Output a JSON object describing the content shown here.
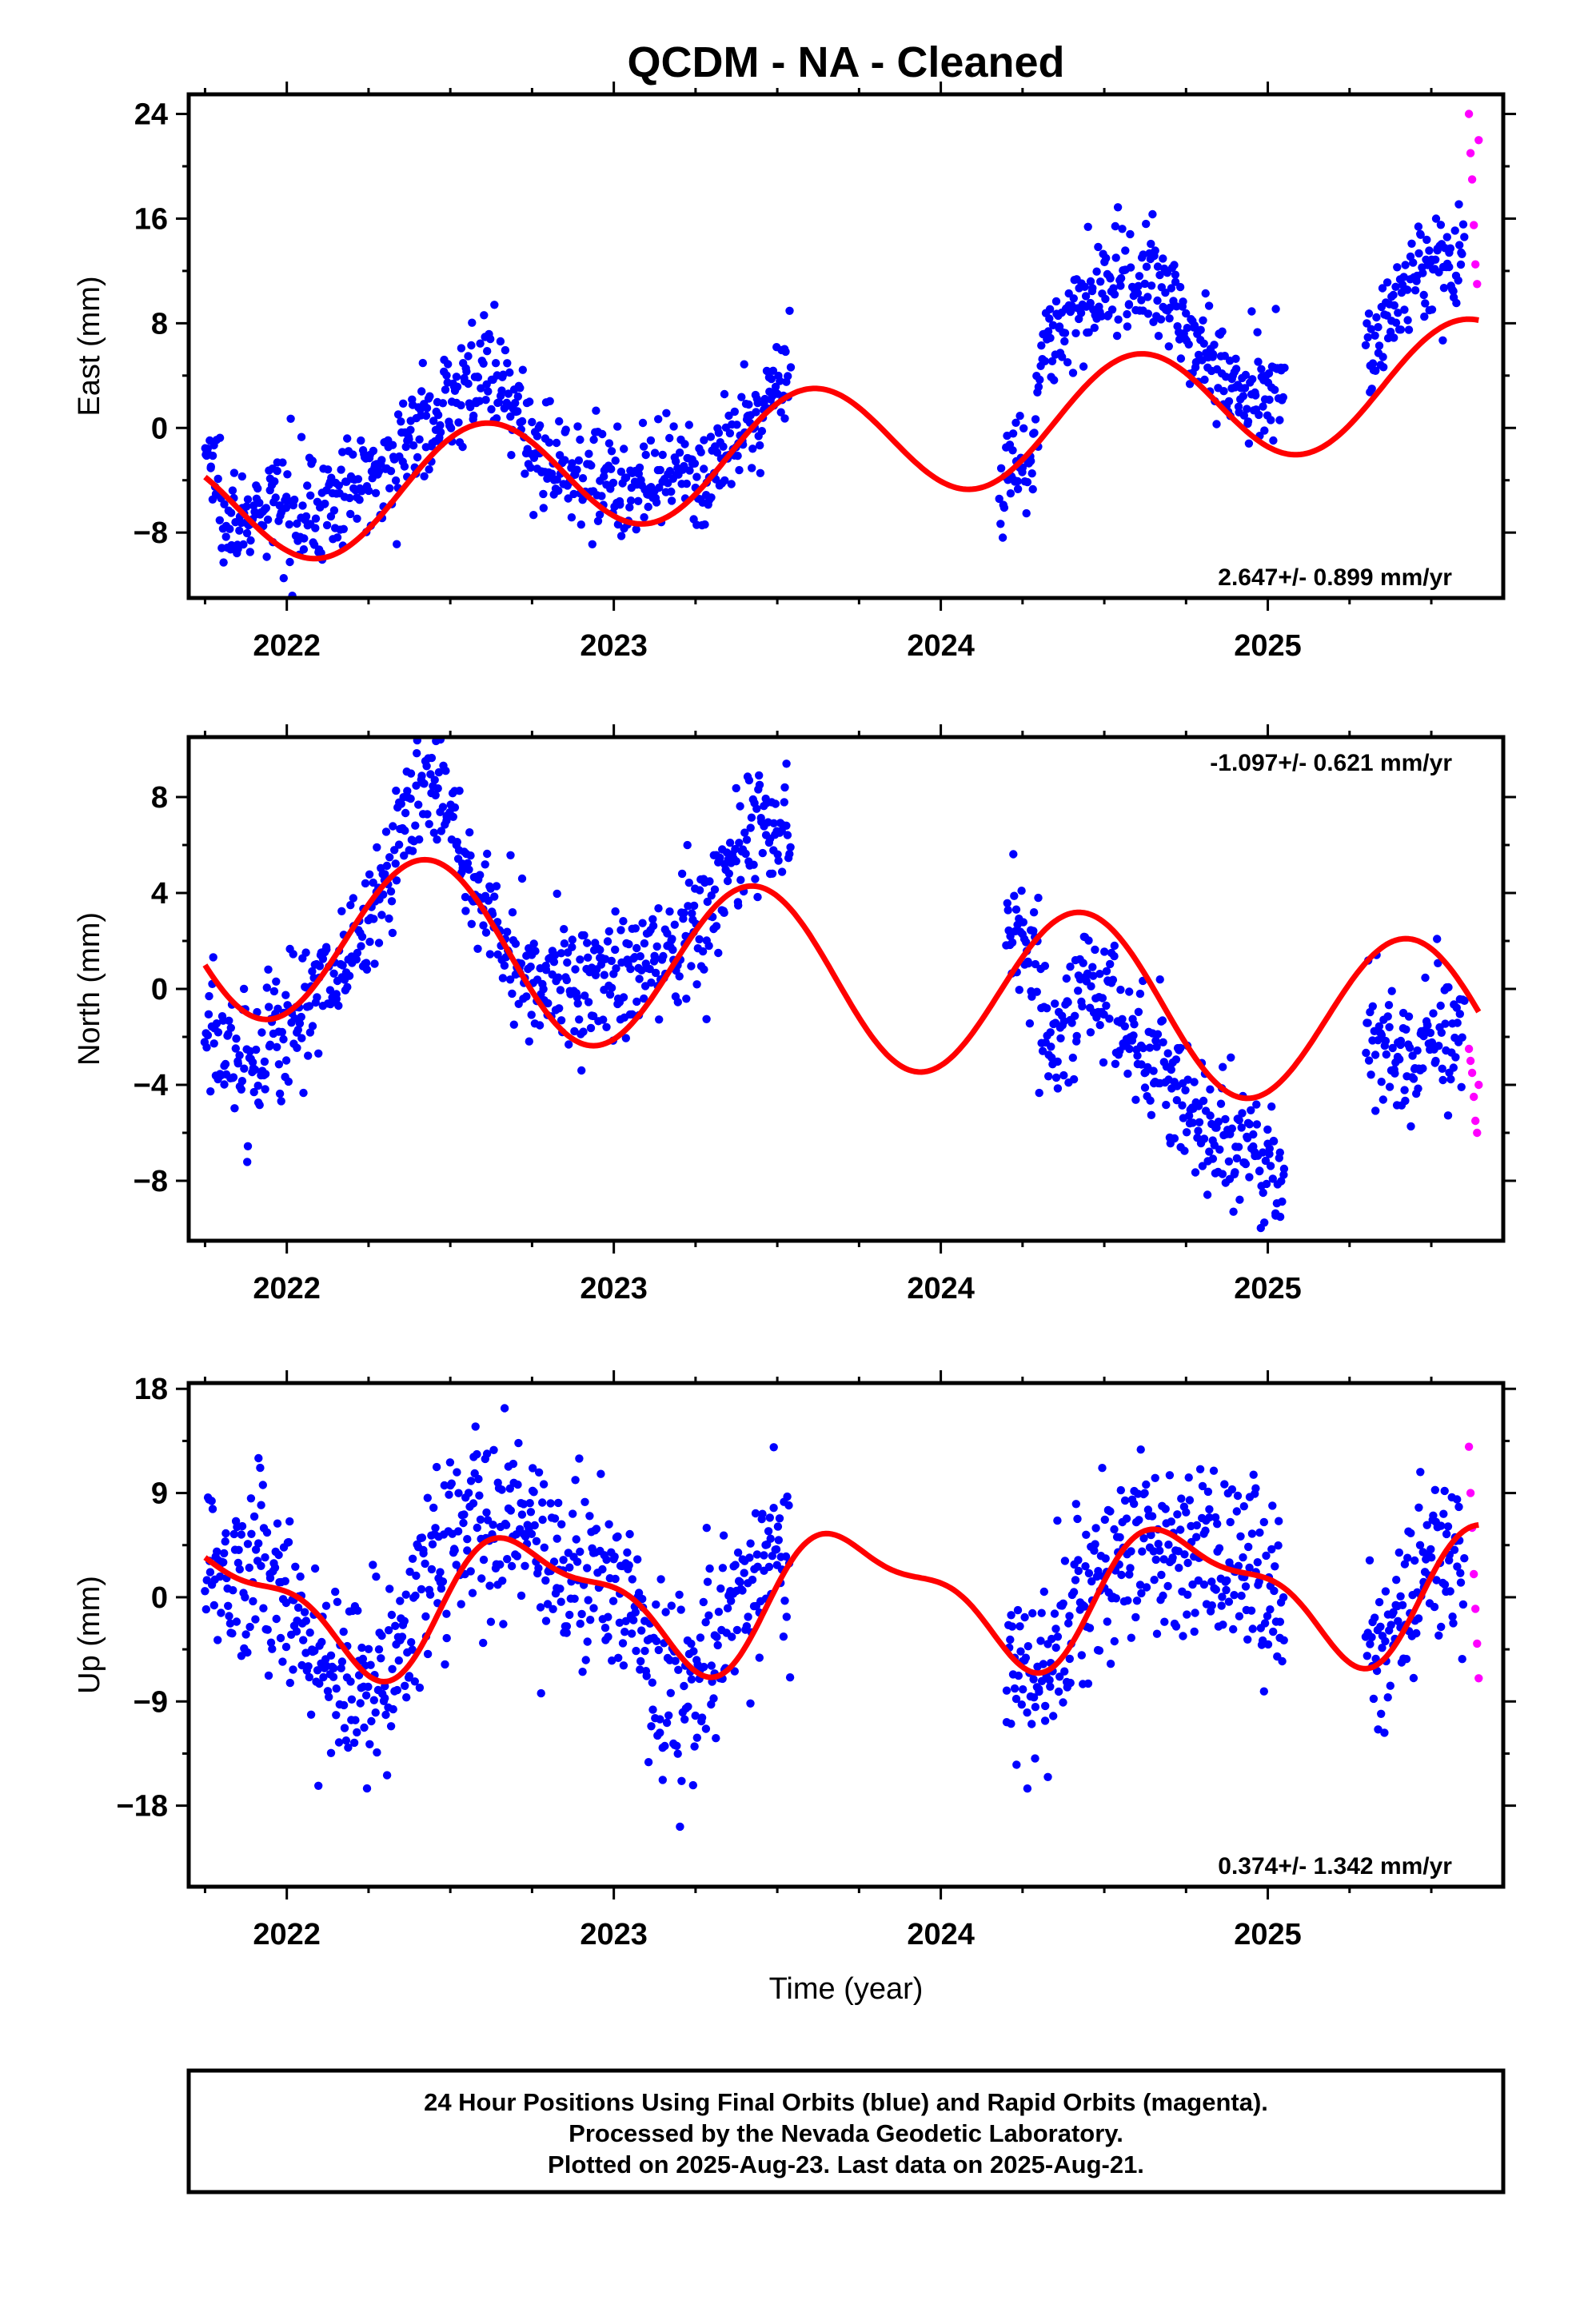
{
  "title": "QCDM  - NA - Cleaned",
  "colors": {
    "final_orbits": "#0000ff",
    "rapid_orbits": "#ff00ff",
    "model": "#ff0000"
  },
  "footer": {
    "lines": [
      "24 Hour Positions Using Final Orbits (blue) and Rapid Orbits (magenta).",
      "Processed by the Nevada Geodetic Laboratory.",
      "Plotted on 2025-Aug-23. Last data on 2025-Aug-21."
    ]
  },
  "chart_data": [
    {
      "type": "scatter",
      "id": "east",
      "ylabel": "East (mm)",
      "xlabel": "",
      "xlim": [
        2021.7,
        2025.72
      ],
      "ylim": [
        -13,
        25.5
      ],
      "xticks": [
        2022,
        2023,
        2024,
        2025
      ],
      "xtick_labels": [
        "2022",
        "2023",
        "2024",
        "2025"
      ],
      "yticks": [
        24,
        16,
        8,
        0,
        -8
      ],
      "ytick_labels": [
        "24",
        "16",
        "8",
        "0",
        "−8"
      ],
      "rate_text": "2.647+/- 0.899 mm/yr",
      "rate_position": "bottom-right",
      "model": {
        "offset": -1.5,
        "rate": 2.647,
        "ref": 2023.6,
        "amp1": 4.5,
        "phase1": 2022.6,
        "amp2": 0,
        "phase2": 0
      },
      "series": [
        {
          "name": "Final Orbits",
          "segments": [
            {
              "x": [
                2021.75,
                2021.8,
                2021.85,
                2021.9,
                2021.95,
                2022.0,
                2022.05,
                2022.1,
                2022.15,
                2022.2,
                2022.25,
                2022.3,
                2022.35,
                2022.4,
                2022.45,
                2022.5,
                2022.55,
                2022.6,
                2022.65,
                2022.7,
                2022.75,
                2022.8,
                2022.85,
                2022.9,
                2022.95,
                2023.0,
                2023.05,
                2023.1,
                2023.15,
                2023.2,
                2023.25,
                2023.3,
                2023.35,
                2023.4,
                2023.45,
                2023.5,
                2023.54
              ],
              "y": [
                -1.5,
                -5.0,
                -7.0,
                -7.5,
                -6.0,
                -6.0,
                -5.5,
                -6.5,
                -5.5,
                -5.0,
                -3.5,
                -2.5,
                -2.0,
                0.0,
                1.0,
                2.0,
                3.5,
                4.5,
                3.0,
                1.0,
                -1.0,
                -2.5,
                -3.0,
                -3.0,
                -3.5,
                -4.0,
                -4.5,
                -4.5,
                -4.0,
                -4.0,
                -4.0,
                -3.0,
                -2.0,
                -0.5,
                1.0,
                3.5,
                5.5
              ]
            },
            {
              "x": [
                2024.18,
                2024.21,
                2024.24,
                2024.27,
                2024.3,
                2024.33,
                2024.36,
                2024.4,
                2024.45,
                2024.5,
                2024.55,
                2024.6,
                2024.65,
                2024.7,
                2024.75,
                2024.8,
                2024.85,
                2024.9,
                2024.95,
                2025.0,
                2025.05
              ],
              "y": [
                -4.5,
                -3.5,
                -2.5,
                -3.5,
                5.0,
                6.5,
                7.5,
                8.0,
                9.5,
                10.5,
                11.5,
                12.0,
                11.0,
                9.5,
                8.0,
                6.0,
                4.5,
                3.5,
                3.0,
                3.0,
                2.5
              ]
            },
            {
              "x": [
                2025.3,
                2025.35,
                2025.4,
                2025.45,
                2025.5,
                2025.55,
                2025.6
              ],
              "y": [
                6.0,
                8.0,
                10.0,
                11.5,
                12.5,
                13.0,
                13.5
              ]
            }
          ],
          "scatter": 2.0,
          "density": 7
        },
        {
          "name": "Rapid Orbits",
          "x": [
            2025.615,
            2025.62,
            2025.625,
            2025.63,
            2025.635,
            2025.64,
            2025.645
          ],
          "y": [
            24.0,
            21.0,
            19.0,
            15.5,
            12.5,
            11.0,
            22.0
          ]
        }
      ]
    },
    {
      "type": "scatter",
      "id": "north",
      "ylabel": "North (mm)",
      "xlabel": "",
      "xlim": [
        2021.7,
        2025.72
      ],
      "ylim": [
        -10.5,
        10.5
      ],
      "xticks": [
        2022,
        2023,
        2024,
        2025
      ],
      "xtick_labels": [
        "2022",
        "2023",
        "2024",
        "2025"
      ],
      "yticks": [
        8,
        4,
        0,
        -4,
        -8
      ],
      "ytick_labels": [
        "8",
        "4",
        "0",
        "−4",
        "−8"
      ],
      "rate_text": "-1.097+/- 0.621 mm/yr",
      "rate_position": "top-right",
      "model": {
        "offset": 0.5,
        "rate": -1.097,
        "ref": 2023.6,
        "amp1": 3.6,
        "phase1": 2022.43,
        "amp2": 0,
        "phase2": 0
      },
      "series": [
        {
          "name": "Final Orbits",
          "segments": [
            {
              "x": [
                2021.75,
                2021.8,
                2021.85,
                2021.9,
                2021.95,
                2022.0,
                2022.05,
                2022.1,
                2022.15,
                2022.2,
                2022.25,
                2022.3,
                2022.35,
                2022.4,
                2022.45,
                2022.5,
                2022.55,
                2022.6,
                2022.65,
                2022.7,
                2022.75,
                2022.8,
                2022.85,
                2022.9,
                2022.95,
                2023.0,
                2023.05,
                2023.1,
                2023.15,
                2023.2,
                2023.25,
                2023.3,
                2023.35,
                2023.4,
                2023.45,
                2023.5,
                2023.54
              ],
              "y": [
                -2.0,
                -2.5,
                -3.0,
                -3.0,
                -2.0,
                -1.5,
                -0.5,
                0.0,
                0.5,
                1.5,
                2.5,
                4.5,
                6.5,
                8.0,
                8.5,
                7.5,
                5.0,
                3.5,
                2.5,
                1.5,
                1.0,
                0.5,
                0.5,
                0.0,
                0.0,
                0.5,
                0.5,
                1.0,
                1.5,
                2.0,
                2.5,
                3.5,
                5.0,
                6.0,
                6.5,
                6.5,
                5.5
              ]
            },
            {
              "x": [
                2024.2,
                2024.23,
                2024.26,
                2024.29,
                2024.32,
                2024.35,
                2024.4,
                2024.45,
                2024.5,
                2024.55,
                2024.6,
                2024.65,
                2024.7,
                2024.75,
                2024.8,
                2024.85,
                2024.9,
                2024.95,
                2025.0,
                2025.05
              ],
              "y": [
                3.0,
                2.5,
                1.5,
                1.0,
                -1.5,
                -2.5,
                -0.5,
                0.0,
                -0.5,
                -1.0,
                -2.5,
                -3.0,
                -4.0,
                -4.5,
                -5.5,
                -6.0,
                -6.5,
                -7.0,
                -7.5,
                -8.0
              ]
            },
            {
              "x": [
                2025.3,
                2025.35,
                2025.4,
                2025.45,
                2025.5,
                2025.55,
                2025.6
              ],
              "y": [
                -1.5,
                -2.0,
                -2.5,
                -2.5,
                -2.0,
                -2.0,
                -2.0
              ]
            }
          ],
          "scatter": 1.4,
          "density": 7
        },
        {
          "name": "Rapid Orbits",
          "x": [
            2025.615,
            2025.62,
            2025.625,
            2025.63,
            2025.635,
            2025.64,
            2025.645
          ],
          "y": [
            -2.5,
            -3.0,
            -3.5,
            -4.5,
            -5.5,
            -6.0,
            -4.0
          ]
        }
      ]
    },
    {
      "type": "scatter",
      "id": "up",
      "ylabel": "Up (mm)",
      "xlabel": "Time (year)",
      "xlim": [
        2021.7,
        2025.72
      ],
      "ylim": [
        -25,
        18.5
      ],
      "xticks": [
        2022,
        2023,
        2024,
        2025
      ],
      "xtick_labels": [
        "2022",
        "2023",
        "2024",
        "2025"
      ],
      "yticks": [
        18,
        9,
        0,
        -9,
        -18
      ],
      "ytick_labels": [
        "18",
        "9",
        "0",
        "−9",
        "−18"
      ],
      "rate_text": "0.374+/- 1.342 mm/yr",
      "rate_position": "bottom-right",
      "model": {
        "offset": 0.0,
        "rate": 0.374,
        "ref": 2023.6,
        "amp1": 5.2,
        "phase1": 2022.75,
        "amp2": 2.0,
        "phase2": 2022.58
      },
      "series": [
        {
          "name": "Final Orbits",
          "segments": [
            {
              "x": [
                2021.75,
                2021.8,
                2021.85,
                2021.9,
                2021.95,
                2022.0,
                2022.05,
                2022.1,
                2022.15,
                2022.2,
                2022.25,
                2022.3,
                2022.35,
                2022.4,
                2022.45,
                2022.5,
                2022.55,
                2022.6,
                2022.65,
                2022.7,
                2022.75,
                2022.8,
                2022.85,
                2022.9,
                2022.95,
                2023.0,
                2023.05,
                2023.1,
                2023.15,
                2023.2,
                2023.25,
                2023.3,
                2023.35,
                2023.4,
                2023.45,
                2023.5,
                2023.54
              ],
              "y": [
                3.0,
                3.0,
                3.0,
                2.5,
                2.0,
                0.0,
                -3.0,
                -5.0,
                -6.5,
                -7.5,
                -8.0,
                -7.0,
                -4.0,
                -1.0,
                2.5,
                5.0,
                6.5,
                7.0,
                7.0,
                6.5,
                5.5,
                4.5,
                3.5,
                3.0,
                2.0,
                1.0,
                -1.0,
                -4.0,
                -7.0,
                -8.5,
                -8.0,
                -5.0,
                -2.0,
                0.5,
                2.5,
                4.0,
                4.5
              ]
            },
            {
              "x": [
                2024.2,
                2024.25,
                2024.3,
                2024.35,
                2024.4,
                2024.45,
                2024.5,
                2024.55,
                2024.6,
                2024.65,
                2024.7,
                2024.75,
                2024.8,
                2024.85,
                2024.9,
                2024.95,
                2025.0,
                2025.05
              ],
              "y": [
                -7.0,
                -8.0,
                -7.0,
                -4.0,
                -1.0,
                1.5,
                3.0,
                4.0,
                4.5,
                4.0,
                3.5,
                3.0,
                3.0,
                2.5,
                2.0,
                1.5,
                1.0,
                0.5
              ]
            },
            {
              "x": [
                2025.3,
                2025.35,
                2025.4,
                2025.45,
                2025.5,
                2025.55,
                2025.6
              ],
              "y": [
                -6.0,
                -5.0,
                -2.0,
                1.0,
                3.0,
                4.5,
                5.0
              ]
            }
          ],
          "scatter": 4.0,
          "density": 7
        },
        {
          "name": "Rapid Orbits",
          "x": [
            2025.615,
            2025.62,
            2025.625,
            2025.63,
            2025.635,
            2025.64,
            2025.645
          ],
          "y": [
            13.0,
            9.0,
            6.0,
            2.0,
            -1.0,
            -4.0,
            -7.0
          ]
        }
      ]
    }
  ]
}
